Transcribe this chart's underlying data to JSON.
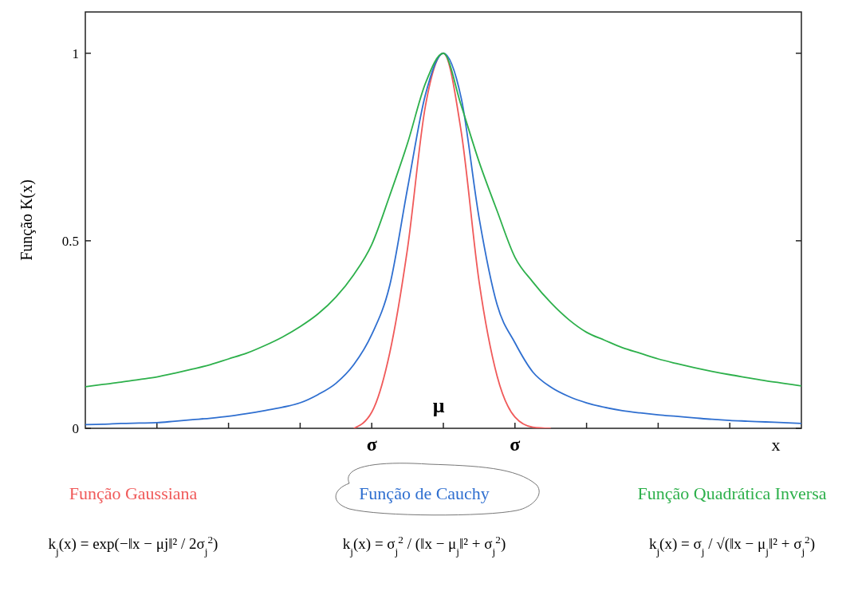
{
  "chart_data": {
    "type": "line",
    "ylabel": "Função K(x)",
    "xlabel": "x",
    "categories": [
      null,
      null,
      null,
      null,
      null,
      null,
      null,
      null,
      null,
      null,
      null,
      null,
      null,
      null,
      null,
      null,
      "σ",
      null,
      null,
      null,
      null,
      null,
      null,
      null,
      "σ",
      null,
      null,
      null,
      null,
      null,
      null,
      null,
      null,
      null,
      null,
      null,
      null,
      null,
      null,
      null,
      null
    ],
    "ylim": [
      0,
      1.11
    ],
    "yticks": [
      0,
      0.5,
      1
    ],
    "legend": "bottom",
    "marker": "none",
    "line_style": "solid",
    "series": [
      {
        "name": "Função Gaussiana",
        "color": "#f05a5a",
        "values": [
          null,
          null,
          null,
          null,
          null,
          null,
          null,
          null,
          null,
          null,
          null,
          null,
          null,
          null,
          null,
          0,
          0.043,
          0.2,
          0.48,
          0.86,
          1,
          0.79,
          0.39,
          0.14,
          0.03,
          0.003,
          0,
          null,
          null,
          null,
          null,
          null,
          null,
          null,
          null,
          null,
          null,
          null,
          null,
          null,
          null
        ]
      },
      {
        "name": "Função de Cauchy",
        "color": "#2f6fd0",
        "values": [
          0.01,
          0.011,
          0.013,
          0.014,
          0.015,
          0.019,
          0.023,
          0.027,
          0.032,
          0.039,
          0.047,
          0.056,
          0.068,
          0.09,
          0.12,
          0.17,
          0.25,
          0.38,
          0.64,
          0.89,
          1,
          0.88,
          0.56,
          0.33,
          0.228,
          0.15,
          0.11,
          0.085,
          0.068,
          0.056,
          0.047,
          0.041,
          0.036,
          0.032,
          0.028,
          0.024,
          0.021,
          0.019,
          0.017,
          0.015,
          0.013
        ]
      },
      {
        "name": "Função Quadrática Inversa",
        "color": "#2db04b",
        "values": [
          0.111,
          0.117,
          0.123,
          0.13,
          0.137,
          0.147,
          0.158,
          0.17,
          0.185,
          0.2,
          0.22,
          0.243,
          0.271,
          0.305,
          0.35,
          0.41,
          0.49,
          0.62,
          0.76,
          0.92,
          1,
          0.86,
          0.71,
          0.58,
          0.456,
          0.39,
          0.335,
          0.29,
          0.256,
          0.235,
          0.215,
          0.2,
          0.185,
          0.173,
          0.162,
          0.152,
          0.143,
          0.135,
          0.127,
          0.12,
          0.113
        ]
      }
    ],
    "annotations": [
      "μ",
      "k$_{j}$(x) = exp(−‖x − μj‖² / 2σ$_{j}$$^{2}$)",
      "k$_{j}$(x) = σ$_{j}$$^{2}$ / (‖x − μ$_{j}$‖² + σ$_{j}$$^{2}$)",
      "k$_{j}$(x) = σ$_{j}$ / √(‖x − μ$_{j}$‖² + σ$_{j}$$^{2}$)"
    ]
  }
}
